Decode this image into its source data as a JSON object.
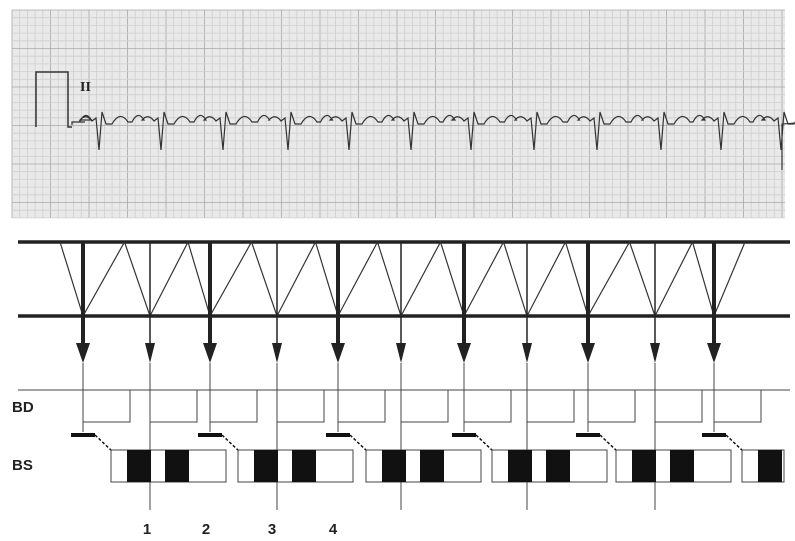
{
  "ecg": {
    "lead": "II"
  },
  "rows": {
    "bd": "BD",
    "bs": "BS"
  },
  "beats": [
    "1",
    "2",
    "3",
    "4"
  ]
}
